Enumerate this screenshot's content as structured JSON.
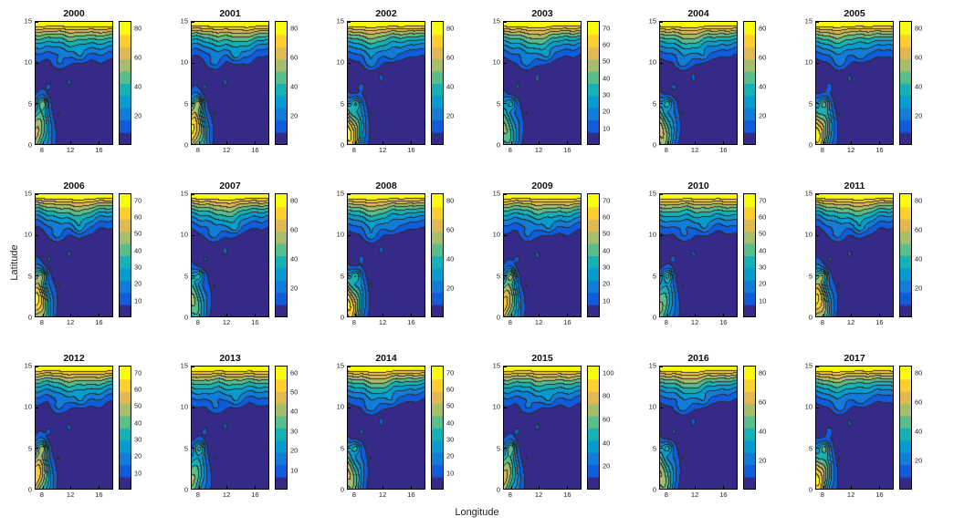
{
  "figure": {
    "background": "#ffffff"
  },
  "chart_data": {
    "type": "heatmap",
    "subtype": "filled-contour-small-multiples",
    "grid": {
      "rows": 3,
      "cols": 6
    },
    "title": "",
    "xlabel": "Longitude",
    "ylabel": "Latitude",
    "x_ticks": [
      "8",
      "12",
      "16"
    ],
    "y_ticks": [
      "15",
      "10",
      "5",
      "0"
    ],
    "xlim": [
      7,
      18
    ],
    "ylim": [
      0,
      15
    ],
    "colormap": "parula",
    "contour_levels": 10,
    "legend_position": "colorbar-right-of-each-panel",
    "panels": [
      {
        "year": "2000",
        "colorbar_ticks": [
          20,
          40,
          60,
          80
        ]
      },
      {
        "year": "2001",
        "colorbar_ticks": [
          20,
          40,
          60,
          80
        ]
      },
      {
        "year": "2002",
        "colorbar_ticks": [
          20,
          40,
          60,
          80
        ]
      },
      {
        "year": "2003",
        "colorbar_ticks": [
          10,
          20,
          30,
          40,
          50,
          60,
          70
        ]
      },
      {
        "year": "2004",
        "colorbar_ticks": [
          20,
          40,
          60,
          80
        ]
      },
      {
        "year": "2005",
        "colorbar_ticks": [
          20,
          40,
          60,
          80
        ]
      },
      {
        "year": "2006",
        "colorbar_ticks": [
          10,
          20,
          30,
          40,
          50,
          60,
          70
        ]
      },
      {
        "year": "2007",
        "colorbar_ticks": [
          20,
          40,
          60,
          80
        ]
      },
      {
        "year": "2008",
        "colorbar_ticks": [
          20,
          40,
          60,
          80
        ]
      },
      {
        "year": "2009",
        "colorbar_ticks": [
          10,
          20,
          30,
          40,
          50,
          60,
          70
        ]
      },
      {
        "year": "2010",
        "colorbar_ticks": [
          10,
          20,
          30,
          40,
          50,
          60,
          70
        ]
      },
      {
        "year": "2011",
        "colorbar_ticks": [
          20,
          40,
          60,
          80
        ]
      },
      {
        "year": "2012",
        "colorbar_ticks": [
          10,
          20,
          30,
          40,
          50,
          60,
          70
        ]
      },
      {
        "year": "2013",
        "colorbar_ticks": [
          10,
          20,
          30,
          40,
          50,
          60
        ]
      },
      {
        "year": "2014",
        "colorbar_ticks": [
          10,
          20,
          30,
          40,
          50,
          60,
          70
        ]
      },
      {
        "year": "2015",
        "colorbar_ticks": [
          20,
          40,
          60,
          80,
          100
        ]
      },
      {
        "year": "2016",
        "colorbar_ticks": [
          20,
          40,
          60,
          80
        ]
      },
      {
        "year": "2017",
        "colorbar_ticks": [
          20,
          40,
          60,
          80
        ]
      }
    ],
    "colors": {
      "contour_line": "#2a2a2a",
      "parula_stops": [
        "#352a87",
        "#0f5cdd",
        "#127dd8",
        "#079ccf",
        "#15b1b4",
        "#59bd8c",
        "#a5be6b",
        "#e1b952",
        "#fcce2e",
        "#f9fb0e"
      ]
    }
  }
}
